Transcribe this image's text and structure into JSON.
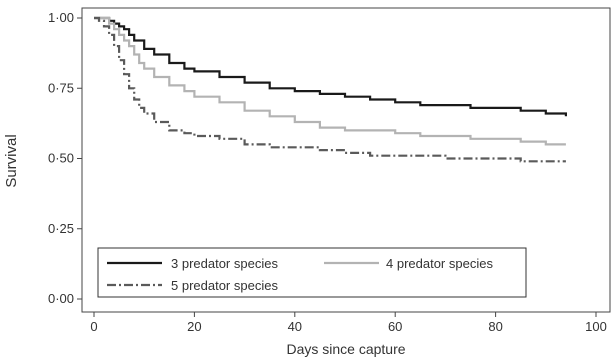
{
  "chart_data": {
    "type": "line",
    "title": "",
    "xlabel": "Days since capture",
    "ylabel": "Survival",
    "xlim": [
      0,
      100
    ],
    "ylim": [
      0,
      1
    ],
    "x_ticks": [
      {
        "value": 0,
        "label": "0"
      },
      {
        "value": 20,
        "label": "20"
      },
      {
        "value": 40,
        "label": "40"
      },
      {
        "value": 60,
        "label": "60"
      },
      {
        "value": 80,
        "label": "80"
      },
      {
        "value": 100,
        "label": "100"
      }
    ],
    "y_ticks": [
      {
        "value": 0,
        "label": "0·00"
      },
      {
        "value": 0.25,
        "label": "0·25"
      },
      {
        "value": 0.5,
        "label": "0·50"
      },
      {
        "value": 0.75,
        "label": "0·75"
      },
      {
        "value": 1,
        "label": "1·00"
      }
    ],
    "grid": false,
    "legend_position": "bottom-left",
    "series": [
      {
        "name": "3 predator species",
        "color": "#1a1a1a",
        "dash": "solid",
        "points": [
          [
            0,
            1.0
          ],
          [
            2,
            1.0
          ],
          [
            3,
            0.99
          ],
          [
            4,
            0.98
          ],
          [
            5,
            0.97
          ],
          [
            6,
            0.96
          ],
          [
            7,
            0.94
          ],
          [
            8,
            0.92
          ],
          [
            10,
            0.89
          ],
          [
            12,
            0.87
          ],
          [
            15,
            0.84
          ],
          [
            18,
            0.82
          ],
          [
            20,
            0.81
          ],
          [
            25,
            0.79
          ],
          [
            30,
            0.77
          ],
          [
            35,
            0.75
          ],
          [
            40,
            0.74
          ],
          [
            45,
            0.73
          ],
          [
            50,
            0.72
          ],
          [
            55,
            0.71
          ],
          [
            60,
            0.7
          ],
          [
            65,
            0.69
          ],
          [
            70,
            0.69
          ],
          [
            75,
            0.68
          ],
          [
            80,
            0.68
          ],
          [
            85,
            0.67
          ],
          [
            90,
            0.66
          ],
          [
            94,
            0.65
          ]
        ]
      },
      {
        "name": "4 predator species",
        "color": "#b3b3b3",
        "dash": "solid",
        "points": [
          [
            0,
            1.0
          ],
          [
            2,
            1.0
          ],
          [
            3,
            0.98
          ],
          [
            4,
            0.96
          ],
          [
            5,
            0.94
          ],
          [
            6,
            0.92
          ],
          [
            7,
            0.9
          ],
          [
            8,
            0.87
          ],
          [
            9,
            0.84
          ],
          [
            10,
            0.82
          ],
          [
            12,
            0.79
          ],
          [
            15,
            0.76
          ],
          [
            18,
            0.74
          ],
          [
            20,
            0.72
          ],
          [
            25,
            0.7
          ],
          [
            30,
            0.67
          ],
          [
            35,
            0.65
          ],
          [
            40,
            0.63
          ],
          [
            45,
            0.61
          ],
          [
            50,
            0.6
          ],
          [
            55,
            0.6
          ],
          [
            60,
            0.59
          ],
          [
            65,
            0.58
          ],
          [
            70,
            0.58
          ],
          [
            75,
            0.57
          ],
          [
            80,
            0.57
          ],
          [
            85,
            0.56
          ],
          [
            90,
            0.55
          ],
          [
            94,
            0.55
          ]
        ]
      },
      {
        "name": "5 predator species",
        "color": "#5a5a5a",
        "dash": "dashdot",
        "points": [
          [
            0,
            1.0
          ],
          [
            1,
            0.99
          ],
          [
            2,
            0.97
          ],
          [
            3,
            0.94
          ],
          [
            4,
            0.9
          ],
          [
            5,
            0.85
          ],
          [
            6,
            0.8
          ],
          [
            7,
            0.75
          ],
          [
            8,
            0.71
          ],
          [
            9,
            0.68
          ],
          [
            10,
            0.66
          ],
          [
            12,
            0.63
          ],
          [
            15,
            0.6
          ],
          [
            18,
            0.59
          ],
          [
            20,
            0.58
          ],
          [
            25,
            0.57
          ],
          [
            30,
            0.55
          ],
          [
            35,
            0.54
          ],
          [
            40,
            0.54
          ],
          [
            45,
            0.53
          ],
          [
            50,
            0.52
          ],
          [
            55,
            0.51
          ],
          [
            60,
            0.51
          ],
          [
            65,
            0.51
          ],
          [
            70,
            0.5
          ],
          [
            75,
            0.5
          ],
          [
            80,
            0.5
          ],
          [
            85,
            0.49
          ],
          [
            90,
            0.49
          ],
          [
            94,
            0.49
          ]
        ]
      }
    ]
  }
}
